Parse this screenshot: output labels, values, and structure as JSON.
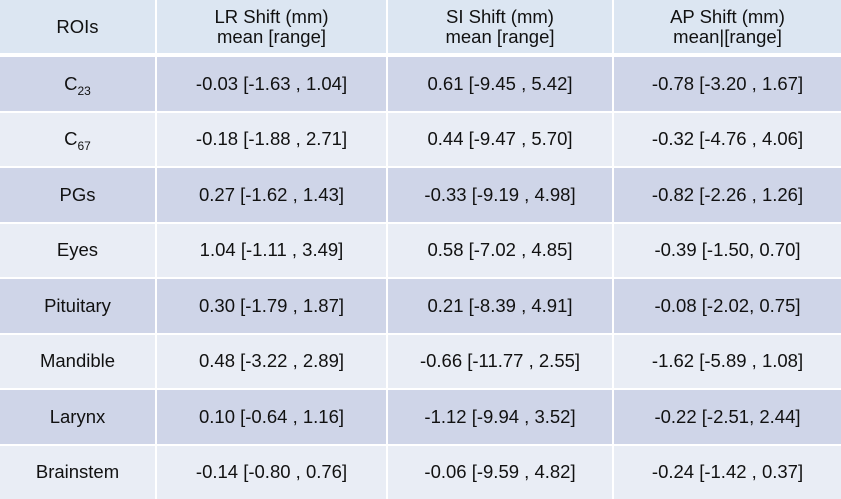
{
  "table": {
    "header": [
      {
        "lines": [
          "ROIs"
        ]
      },
      {
        "lines": [
          "LR Shift (mm)",
          "mean [range]"
        ]
      },
      {
        "lines": [
          "SI Shift (mm)",
          "mean [range]"
        ]
      },
      {
        "lines": [
          "AP Shift (mm)",
          "mean|[range]"
        ]
      }
    ],
    "rows": [
      {
        "roi": {
          "base": "C",
          "sub": "23"
        },
        "cells": [
          "-0.03 [-1.63 , 1.04]",
          "0.61 [-9.45 , 5.42]",
          "-0.78 [-3.20 , 1.67]"
        ]
      },
      {
        "roi": {
          "base": "C",
          "sub": "67"
        },
        "cells": [
          "-0.18 [-1.88 , 2.71]",
          "0.44 [-9.47 , 5.70]",
          "-0.32 [-4.76 , 4.06]"
        ]
      },
      {
        "roi": {
          "base": "PGs"
        },
        "cells": [
          "0.27 [-1.62 , 1.43]",
          "-0.33 [-9.19 , 4.98]",
          "-0.82 [-2.26 , 1.26]"
        ]
      },
      {
        "roi": {
          "base": "Eyes"
        },
        "cells": [
          "1.04 [-1.11 , 3.49]",
          "0.58 [-7.02 , 4.85]",
          "-0.39 [-1.50, 0.70]"
        ]
      },
      {
        "roi": {
          "base": "Pituitary"
        },
        "cells": [
          "0.30 [-1.79 , 1.87]",
          "0.21 [-8.39 , 4.91]",
          "-0.08 [-2.02, 0.75]"
        ]
      },
      {
        "roi": {
          "base": "Mandible"
        },
        "cells": [
          "0.48 [-3.22 , 2.89]",
          "-0.66 [-11.77 , 2.55]",
          "-1.62 [-5.89 , 1.08]"
        ]
      },
      {
        "roi": {
          "base": "Larynx"
        },
        "cells": [
          "0.10 [-0.64 , 1.16]",
          "-1.12 [-9.94 , 3.52]",
          "-0.22 [-2.51, 2.44]"
        ]
      },
      {
        "roi": {
          "base": "Brainstem"
        },
        "cells": [
          "-0.14 [-0.80 , 0.76]",
          "-0.06 [-9.59 , 4.82]",
          "-0.24 [-1.42 , 0.37]"
        ]
      }
    ]
  }
}
